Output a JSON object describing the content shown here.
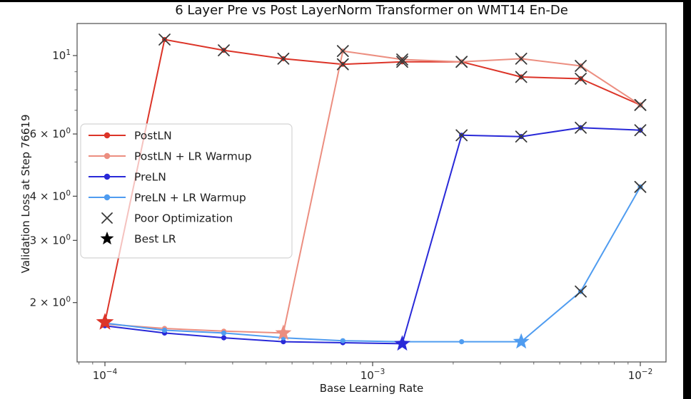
{
  "window": {
    "top_bar_color": "#000000",
    "right_bar_color": "#000000",
    "background": "#ffffff"
  },
  "chart_data": {
    "type": "line",
    "title": "6 Layer Pre vs Post LayerNorm Transformer on WMT14 En-De",
    "xlabel": "Base Learning Rate",
    "ylabel": "Validation Loss at Step 76619",
    "x_scale": "log",
    "y_scale": "log",
    "xlim": [
      7.9e-05,
      0.0123
    ],
    "ylim": [
      1.36,
      12.35
    ],
    "grid": false,
    "legend_position": "center left",
    "x": [
      0.0001,
      0.000167,
      0.000278,
      0.000464,
      0.000774,
      0.00129,
      0.00215,
      0.00359,
      0.00599,
      0.01
    ],
    "series": [
      {
        "name": "PostLN",
        "color": "#dc3428",
        "best_lr": 0.0001,
        "values": [
          1.76,
          11.1,
          10.35,
          9.8,
          9.45,
          9.6,
          9.6,
          8.7,
          8.6,
          7.25
        ],
        "markers": [
          "star",
          "x",
          "x",
          "x",
          "x",
          "x",
          "x",
          "x",
          "x",
          "x"
        ]
      },
      {
        "name": "PostLN + LR Warmup",
        "color": "#ec8e80",
        "best_lr": 0.000464,
        "values": [
          1.74,
          1.69,
          1.66,
          1.64,
          10.3,
          9.75,
          9.6,
          9.8,
          9.35,
          7.25
        ],
        "markers": [
          "dot",
          "dot",
          "dot",
          "star",
          "x",
          "x",
          "x",
          "x",
          "x",
          "x"
        ]
      },
      {
        "name": "PreLN",
        "color": "#2929d8",
        "best_lr": 0.00129,
        "values": [
          1.72,
          1.64,
          1.59,
          1.55,
          1.54,
          1.53,
          5.95,
          5.9,
          6.25,
          6.15
        ],
        "markers": [
          "dot",
          "dot",
          "dot",
          "dot",
          "dot",
          "star",
          "x",
          "x",
          "x",
          "x"
        ]
      },
      {
        "name": "PreLN + LR Warmup",
        "color": "#4f9cf0",
        "best_lr": 0.00359,
        "values": [
          1.75,
          1.67,
          1.64,
          1.59,
          1.56,
          1.55,
          1.55,
          1.55,
          2.15,
          4.25
        ],
        "markers": [
          "dot",
          "dot",
          "dot",
          "dot",
          "dot",
          "dot",
          "dot",
          "star",
          "x",
          "x"
        ]
      }
    ],
    "marker_styles": {
      "x_color": "#3a3a3a",
      "best_star_note": "Best LR drawn as star in series color",
      "poor_label": "Poor Optimization",
      "best_label": "Best LR",
      "legend_star_color": "#000000"
    },
    "x_ticks": [
      {
        "value": 0.0001,
        "base": "10",
        "exp": "−4"
      },
      {
        "value": 0.001,
        "base": "10",
        "exp": "−3"
      },
      {
        "value": 0.01,
        "base": "10",
        "exp": "−2"
      }
    ],
    "x_minor_ticks": [
      8e-05,
      9e-05,
      0.0002,
      0.0003,
      0.0004,
      0.0005,
      0.0006,
      0.0007,
      0.0008,
      0.0009,
      0.002,
      0.003,
      0.004,
      0.005,
      0.006,
      0.007,
      0.008,
      0.009
    ],
    "y_ticks": [
      {
        "value": 10,
        "pre": "",
        "base": "10",
        "exp": "1"
      },
      {
        "value": 6,
        "pre": "6 × ",
        "base": "10",
        "exp": "0"
      },
      {
        "value": 4,
        "pre": "4 × ",
        "base": "10",
        "exp": "0"
      },
      {
        "value": 3,
        "pre": "3 × ",
        "base": "10",
        "exp": "0"
      },
      {
        "value": 2,
        "pre": "2 × ",
        "base": "10",
        "exp": "0"
      }
    ],
    "y_minor_ticks": [
      9,
      8,
      7,
      5
    ],
    "legend": [
      {
        "label": "PostLN",
        "marker": "line-dot",
        "series": 0
      },
      {
        "label": "PostLN + LR Warmup",
        "marker": "line-dot",
        "series": 1
      },
      {
        "label": "PreLN",
        "marker": "line-dot",
        "series": 2
      },
      {
        "label": "PreLN + LR Warmup",
        "marker": "line-dot",
        "series": 3
      },
      {
        "label": "Poor Optimization",
        "marker": "x",
        "color": "#3a3a3a"
      },
      {
        "label": "Best LR",
        "marker": "star",
        "color": "#000000"
      }
    ]
  }
}
